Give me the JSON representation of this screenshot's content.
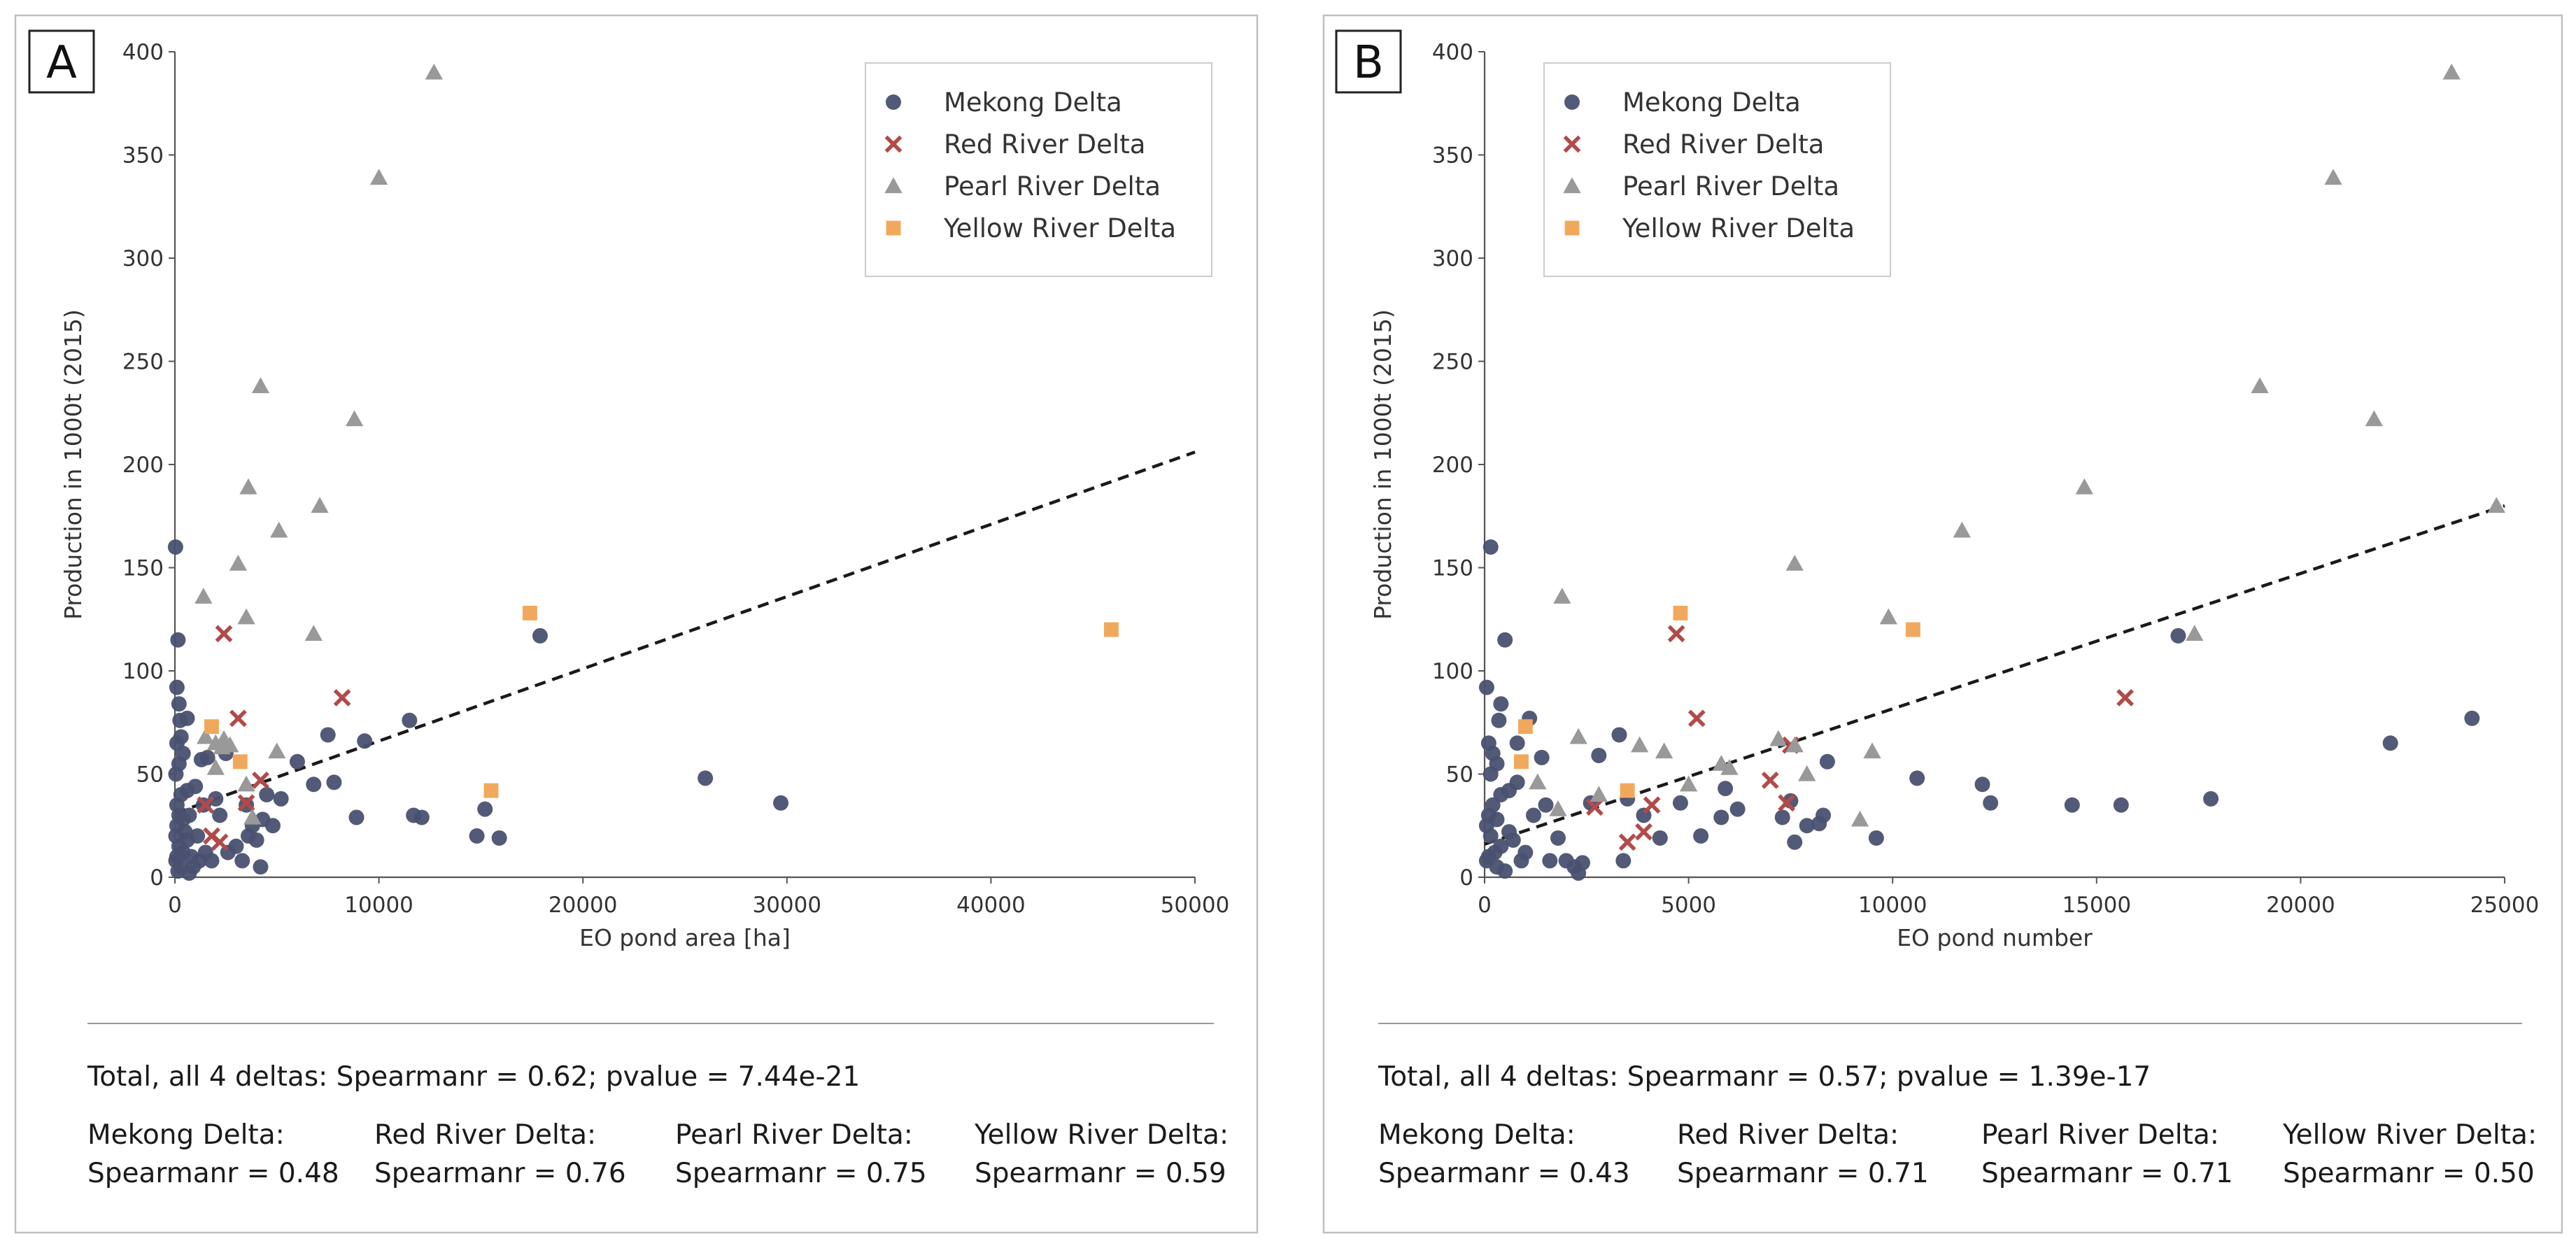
{
  "colors": {
    "mekong": "#4a5170",
    "red": "#b24a4a",
    "pearl": "#999999",
    "yellow": "#f0a95c",
    "frame": "#bfbfbf",
    "axis": "#555555",
    "trend": "#1a1a1a"
  },
  "legend_labels": [
    "Mekong Delta",
    "Red River Delta",
    "Pearl River Delta",
    "Yellow River Delta"
  ],
  "chart_data": [
    {
      "panel": "A",
      "type": "scatter",
      "xlabel": "EO pond area [ha]",
      "ylabel": "Production in 1000t (2015)",
      "xlim": [
        0,
        50000
      ],
      "ylim": [
        0,
        400
      ],
      "xticks": [
        0,
        10000,
        20000,
        30000,
        40000,
        50000
      ],
      "yticks": [
        0,
        50,
        100,
        150,
        200,
        250,
        300,
        350,
        400
      ],
      "legend_position": "top-right",
      "trendline": {
        "x": [
          0,
          50000
        ],
        "y": [
          31,
          206
        ]
      },
      "series": [
        {
          "name": "Mekong Delta",
          "marker": "circle",
          "points": [
            [
              30,
              160
            ],
            [
              150,
              115
            ],
            [
              100,
              92
            ],
            [
              200,
              84
            ],
            [
              250,
              76
            ],
            [
              600,
              77
            ],
            [
              300,
              68
            ],
            [
              100,
              65
            ],
            [
              400,
              60
            ],
            [
              200,
              55
            ],
            [
              50,
              50
            ],
            [
              600,
              42
            ],
            [
              1000,
              44
            ],
            [
              300,
              40
            ],
            [
              100,
              35
            ],
            [
              200,
              30
            ],
            [
              400,
              28
            ],
            [
              100,
              25
            ],
            [
              50,
              20
            ],
            [
              600,
              18
            ],
            [
              200,
              15
            ],
            [
              400,
              12
            ],
            [
              100,
              10
            ],
            [
              50,
              8
            ],
            [
              300,
              5
            ],
            [
              150,
              3
            ],
            [
              700,
              2
            ],
            [
              500,
              22
            ],
            [
              800,
              10
            ],
            [
              1200,
              8
            ],
            [
              1500,
              12
            ],
            [
              1300,
              57
            ],
            [
              1600,
              58
            ],
            [
              2000,
              38
            ],
            [
              2500,
              60
            ],
            [
              2200,
              30
            ],
            [
              1800,
              8
            ],
            [
              3000,
              15
            ],
            [
              3500,
              35
            ],
            [
              3600,
              20
            ],
            [
              3800,
              25
            ],
            [
              4000,
              18
            ],
            [
              4200,
              5
            ],
            [
              4500,
              40
            ],
            [
              4800,
              25
            ],
            [
              5200,
              38
            ],
            [
              6000,
              56
            ],
            [
              6800,
              45
            ],
            [
              7500,
              69
            ],
            [
              7800,
              46
            ],
            [
              8900,
              29
            ],
            [
              9300,
              66
            ],
            [
              11500,
              76
            ],
            [
              11700,
              30
            ],
            [
              12100,
              29
            ],
            [
              14800,
              20
            ],
            [
              15200,
              33
            ],
            [
              15900,
              19
            ],
            [
              17900,
              117
            ],
            [
              26000,
              48
            ],
            [
              29700,
              36
            ],
            [
              1100,
              20
            ],
            [
              2600,
              12
            ],
            [
              700,
              30
            ],
            [
              900,
              5
            ],
            [
              1400,
              35
            ],
            [
              4300,
              28
            ],
            [
              3300,
              8
            ]
          ]
        },
        {
          "name": "Red River Delta",
          "marker": "x",
          "points": [
            [
              2400,
              118
            ],
            [
              3100,
              77
            ],
            [
              8200,
              87
            ],
            [
              4200,
              47
            ],
            [
              3500,
              36
            ],
            [
              1500,
              35
            ],
            [
              1800,
              20
            ],
            [
              2200,
              17
            ]
          ]
        },
        {
          "name": "Pearl River Delta",
          "marker": "triangle",
          "points": [
            [
              12700,
              390
            ],
            [
              10000,
              339
            ],
            [
              4200,
              238
            ],
            [
              8800,
              222
            ],
            [
              3600,
              189
            ],
            [
              7100,
              180
            ],
            [
              5100,
              168
            ],
            [
              1400,
              136
            ],
            [
              3100,
              152
            ],
            [
              3500,
              126
            ],
            [
              6800,
              118
            ],
            [
              2000,
              65
            ],
            [
              2300,
              63
            ],
            [
              2400,
              67
            ],
            [
              2700,
              64
            ],
            [
              1500,
              68
            ],
            [
              2000,
              53
            ],
            [
              5000,
              61
            ],
            [
              3500,
              45
            ],
            [
              3800,
              29
            ]
          ]
        },
        {
          "name": "Yellow River Delta",
          "marker": "square",
          "points": [
            [
              17400,
              128
            ],
            [
              45900,
              120
            ],
            [
              1800,
              73
            ],
            [
              3200,
              56
            ],
            [
              15500,
              42
            ]
          ]
        }
      ]
    },
    {
      "panel": "B",
      "type": "scatter",
      "xlabel": "EO pond number",
      "ylabel": "Production in 1000t (2015)",
      "xlim": [
        0,
        25000
      ],
      "ylim": [
        0,
        400
      ],
      "xticks": [
        0,
        5000,
        10000,
        15000,
        20000,
        25000
      ],
      "yticks": [
        0,
        50,
        100,
        150,
        200,
        250,
        300,
        350,
        400
      ],
      "legend_position": "top-left",
      "trendline": {
        "x": [
          0,
          25000
        ],
        "y": [
          16,
          180
        ]
      },
      "series": [
        {
          "name": "Mekong Delta",
          "marker": "circle",
          "points": [
            [
              150,
              160
            ],
            [
              500,
              115
            ],
            [
              400,
              84
            ],
            [
              350,
              76
            ],
            [
              1100,
              77
            ],
            [
              50,
              92
            ],
            [
              100,
              65
            ],
            [
              200,
              60
            ],
            [
              300,
              55
            ],
            [
              150,
              50
            ],
            [
              800,
              65
            ],
            [
              600,
              42
            ],
            [
              400,
              40
            ],
            [
              200,
              35
            ],
            [
              100,
              30
            ],
            [
              50,
              25
            ],
            [
              300,
              28
            ],
            [
              150,
              20
            ],
            [
              400,
              15
            ],
            [
              250,
              12
            ],
            [
              100,
              10
            ],
            [
              50,
              8
            ],
            [
              300,
              5
            ],
            [
              500,
              3
            ],
            [
              700,
              18
            ],
            [
              900,
              8
            ],
            [
              1200,
              30
            ],
            [
              1400,
              58
            ],
            [
              1500,
              35
            ],
            [
              1800,
              19
            ],
            [
              2000,
              8
            ],
            [
              2200,
              5
            ],
            [
              2400,
              7
            ],
            [
              2600,
              36
            ],
            [
              2800,
              59
            ],
            [
              3300,
              69
            ],
            [
              3400,
              8
            ],
            [
              3500,
              38
            ],
            [
              3900,
              30
            ],
            [
              4300,
              19
            ],
            [
              4800,
              36
            ],
            [
              5300,
              20
            ],
            [
              5800,
              29
            ],
            [
              5900,
              43
            ],
            [
              6200,
              33
            ],
            [
              7300,
              29
            ],
            [
              7500,
              37
            ],
            [
              7600,
              17
            ],
            [
              7900,
              25
            ],
            [
              8200,
              26
            ],
            [
              8300,
              30
            ],
            [
              8400,
              56
            ],
            [
              9600,
              19
            ],
            [
              10600,
              48
            ],
            [
              12200,
              45
            ],
            [
              12400,
              36
            ],
            [
              14400,
              35
            ],
            [
              15600,
              35
            ],
            [
              17000,
              117
            ],
            [
              17800,
              38
            ],
            [
              22200,
              65
            ],
            [
              24200,
              77
            ],
            [
              600,
              22
            ],
            [
              1000,
              12
            ],
            [
              1600,
              8
            ],
            [
              800,
              46
            ],
            [
              2300,
              2
            ]
          ]
        },
        {
          "name": "Red River Delta",
          "marker": "x",
          "points": [
            [
              4700,
              118
            ],
            [
              5200,
              77
            ],
            [
              15700,
              87
            ],
            [
              7000,
              47
            ],
            [
              7400,
              36
            ],
            [
              3500,
              17
            ],
            [
              3900,
              22
            ],
            [
              4100,
              35
            ],
            [
              2700,
              34
            ],
            [
              7500,
              64
            ]
          ]
        },
        {
          "name": "Pearl River Delta",
          "marker": "triangle",
          "points": [
            [
              23700,
              390
            ],
            [
              20800,
              339
            ],
            [
              19000,
              238
            ],
            [
              21800,
              222
            ],
            [
              14700,
              189
            ],
            [
              24800,
              180
            ],
            [
              11700,
              168
            ],
            [
              1900,
              136
            ],
            [
              7600,
              152
            ],
            [
              9900,
              126
            ],
            [
              17400,
              118
            ],
            [
              5800,
              55
            ],
            [
              6000,
              53
            ],
            [
              7200,
              67
            ],
            [
              7600,
              64
            ],
            [
              9500,
              61
            ],
            [
              4400,
              61
            ],
            [
              3800,
              64
            ],
            [
              2300,
              68
            ],
            [
              5000,
              45
            ],
            [
              9200,
              28
            ],
            [
              7900,
              50
            ],
            [
              1800,
              33
            ],
            [
              1300,
              46
            ],
            [
              2800,
              40
            ]
          ]
        },
        {
          "name": "Yellow River Delta",
          "marker": "square",
          "points": [
            [
              4800,
              128
            ],
            [
              10500,
              120
            ],
            [
              1000,
              73
            ],
            [
              900,
              56
            ],
            [
              3500,
              42
            ]
          ]
        }
      ]
    }
  ],
  "panels": [
    {
      "letter": "A",
      "stats": {
        "total": "Total, all 4 deltas: Spearmanr = 0.62; pvalue = 7.44e-21",
        "deltas": [
          {
            "name": "Mekong Delta:",
            "value": "Spearmanr = 0.48"
          },
          {
            "name": "Red River Delta:",
            "value": "Spearmanr = 0.76"
          },
          {
            "name": "Pearl River Delta:",
            "value": "Spearmanr = 0.75"
          },
          {
            "name": "Yellow River Delta:",
            "value": "Spearmanr = 0.59"
          }
        ]
      }
    },
    {
      "letter": "B",
      "stats": {
        "total": "Total, all 4 deltas: Spearmanr = 0.57; pvalue = 1.39e-17",
        "deltas": [
          {
            "name": "Mekong Delta:",
            "value": "Spearmanr = 0.43"
          },
          {
            "name": "Red River Delta:",
            "value": "Spearmanr = 0.71"
          },
          {
            "name": "Pearl River Delta:",
            "value": "Spearmanr = 0.71"
          },
          {
            "name": "Yellow River Delta:",
            "value": "Spearmanr = 0.50"
          }
        ]
      }
    }
  ]
}
